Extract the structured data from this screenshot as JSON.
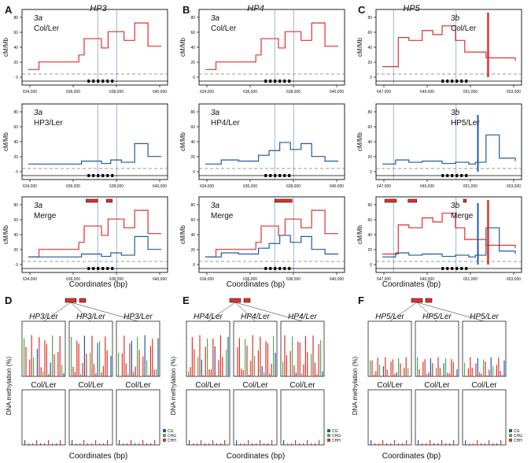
{
  "colors": {
    "red": "#e0312b",
    "blue": "#1f5aa6",
    "green": "#4caf50",
    "frame": "#222222",
    "dash": "#777777",
    "vline": "#6f93c8"
  },
  "top": {
    "panel_letters": [
      "A",
      "B",
      "C"
    ],
    "titles": [
      "HP3",
      "HP4",
      "HP5"
    ],
    "y_label": "cM/Mb",
    "y_ticks": [
      "0",
      "20",
      "40",
      "60",
      "80"
    ],
    "x_axis_label": "Coordinates (bp)",
    "x_ticks": [
      [
        "634,000",
        "636,000",
        "638,000",
        "640,000"
      ],
      [
        "634,000",
        "636,000",
        "638,000",
        "640,000"
      ],
      [
        "647,000",
        "649,000",
        "651,000",
        "653,000"
      ]
    ],
    "rows": [
      [
        {
          "tag": "3a",
          "name": "Col/Ler"
        },
        {
          "tag": "3a",
          "name": "Col/Ler"
        },
        {
          "tag": "3b",
          "name": "Col/Ler"
        }
      ],
      [
        {
          "tag": "3a",
          "name": "HP3/Ler"
        },
        {
          "tag": "3a",
          "name": "HP4/Ler"
        },
        {
          "tag": "3b",
          "name": "HP5/Ler"
        }
      ],
      [
        {
          "tag": "3a",
          "name": "Merge"
        },
        {
          "tag": "3a",
          "name": "Merge"
        },
        {
          "tag": "3b",
          "name": "Merge"
        }
      ]
    ]
  },
  "bottom": {
    "panel_letters": [
      "D",
      "E",
      "F"
    ],
    "y_label": "DNA methylation (%)",
    "x_axis_label": "Coordinates (bp)",
    "top_labels": [
      [
        "HP3/Ler",
        "HP3/Ler",
        "HP3/Ler"
      ],
      [
        "HP4/Ler",
        "HP4/Ler",
        "HP4/Ler"
      ],
      [
        "HP5/Ler",
        "HP5/Ler",
        "HP5/Ler"
      ]
    ],
    "bottom_labels": [
      [
        "Col/Ler",
        "Col/Ler",
        "Col/Ler"
      ],
      [
        "Col/Ler",
        "Col/Ler",
        "Col/Ler"
      ],
      [
        "Col/Ler",
        "Col/Ler",
        "Col/Ler"
      ]
    ],
    "legend": [
      "CG",
      "CHG",
      "CHH"
    ]
  }
}
